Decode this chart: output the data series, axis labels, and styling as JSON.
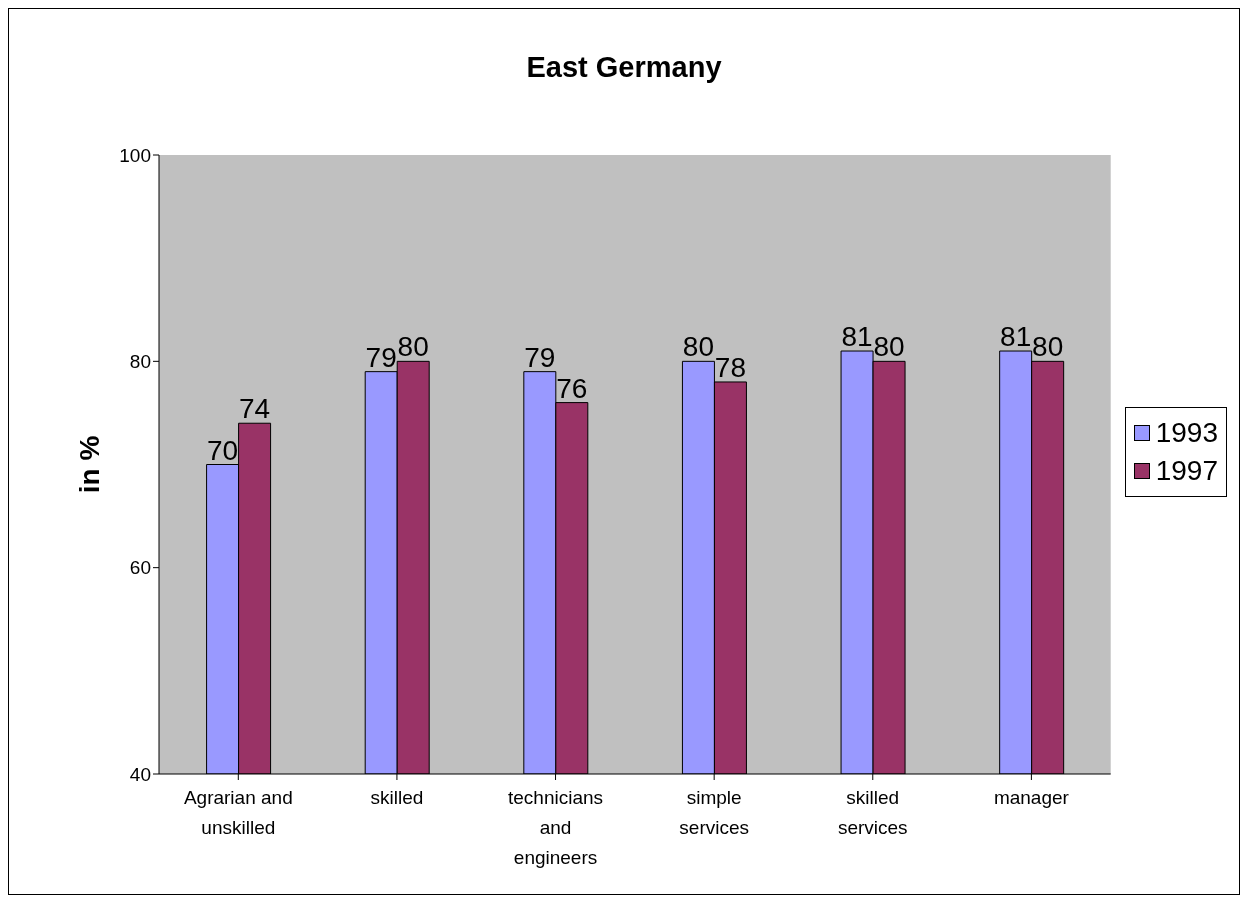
{
  "chart_data": {
    "type": "bar",
    "title": "East Germany",
    "ylabel": "in %",
    "categories": [
      "Agrarian and unskilled",
      "skilled",
      "technicians and engineers",
      "simple services",
      "skilled services",
      "manager"
    ],
    "series": [
      {
        "name": "1993",
        "color": "#9999ff",
        "values": [
          70,
          79,
          79,
          80,
          81,
          81
        ]
      },
      {
        "name": "1997",
        "color": "#993366",
        "values": [
          74,
          80,
          76,
          78,
          80,
          80
        ]
      }
    ],
    "ylim": [
      40,
      100
    ],
    "yticks": [
      40,
      60,
      80,
      100
    ],
    "grid": false,
    "legend": "right",
    "data_labels": true
  }
}
